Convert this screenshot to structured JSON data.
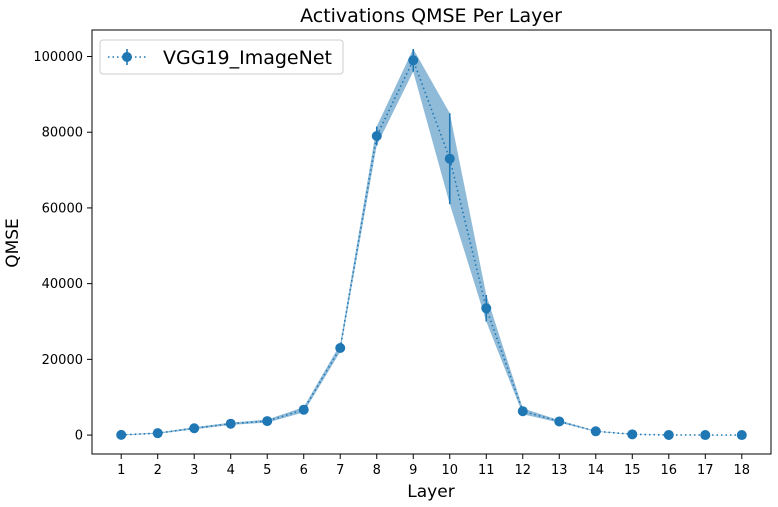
{
  "chart_data": {
    "type": "line",
    "title": "Activations QMSE Per Layer",
    "xlabel": "Layer",
    "ylabel": "QMSE",
    "x": [
      1,
      2,
      3,
      4,
      5,
      6,
      7,
      8,
      9,
      10,
      11,
      12,
      13,
      14,
      15,
      16,
      17,
      18
    ],
    "xticks": [
      "1",
      "2",
      "3",
      "4",
      "5",
      "6",
      "7",
      "8",
      "9",
      "10",
      "11",
      "12",
      "13",
      "14",
      "15",
      "16",
      "17",
      "18"
    ],
    "yticks": [
      0,
      20000,
      40000,
      60000,
      80000,
      100000
    ],
    "ytick_labels": [
      "0",
      "20000",
      "40000",
      "60000",
      "80000",
      "100000"
    ],
    "ylim": [
      -5000,
      107000
    ],
    "xlim": [
      0.2,
      18.8
    ],
    "grid": false,
    "legend_position": "top-left",
    "series": [
      {
        "name": "VGG19_ImageNet",
        "color": "#1f77b4",
        "band_color": "#1f77b4",
        "values": [
          50,
          500,
          1800,
          3000,
          3700,
          6700,
          23000,
          79000,
          99000,
          73000,
          33500,
          6300,
          3600,
          1000,
          200,
          30,
          10,
          10
        ],
        "errors": [
          100,
          150,
          300,
          300,
          400,
          700,
          1000,
          2500,
          3000,
          12000,
          3500,
          800,
          300,
          100,
          50,
          10,
          5,
          5
        ]
      }
    ]
  }
}
